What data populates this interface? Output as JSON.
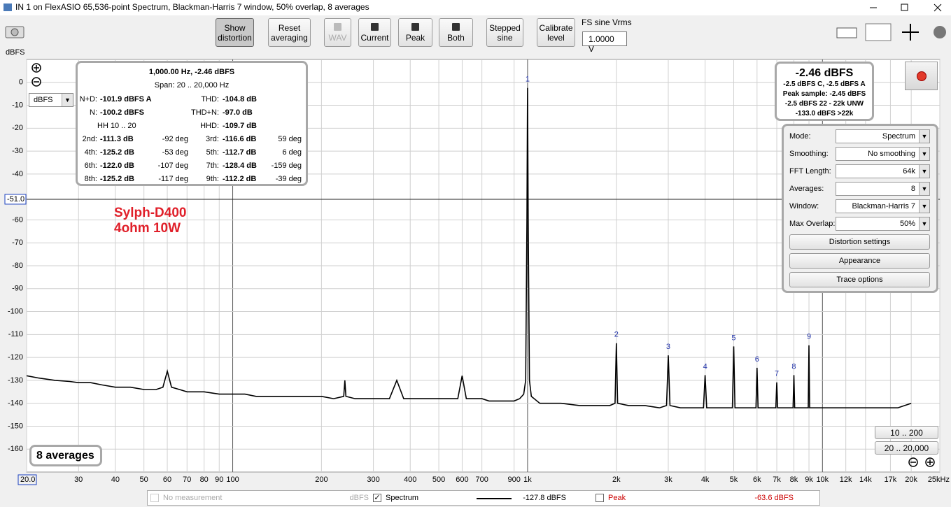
{
  "window": {
    "title": "IN 1 on FlexASIO 65,536-point Spectrum, Blackman-Harris 7 window, 50% overlap, 8 averages"
  },
  "toolbar": {
    "buttons": [
      "Show distortion",
      "Reset averaging",
      "WAV",
      "Current",
      "Peak",
      "Both",
      "Stepped sine",
      "Calibrate level"
    ],
    "fs_label": "FS sine Vrms",
    "fs_value": "1.0000 V"
  },
  "unit_label": "dBFS",
  "unit_selector": "dBFS",
  "chart_data": {
    "type": "line",
    "xscale": "log",
    "grid": true,
    "xlim": [
      20,
      25000
    ],
    "ylim": [
      -170,
      10
    ],
    "xticks": [
      {
        "value": 20,
        "label": "20.0"
      },
      30,
      40,
      50,
      60,
      70,
      80,
      90,
      100,
      200,
      300,
      400,
      500,
      600,
      700,
      900,
      {
        "value": 1000,
        "label": "1k"
      },
      {
        "value": 2000,
        "label": "2k"
      },
      {
        "value": 3000,
        "label": "3k"
      },
      {
        "value": 4000,
        "label": "4k"
      },
      {
        "value": 5000,
        "label": "5k"
      },
      {
        "value": 6000,
        "label": "6k"
      },
      {
        "value": 7000,
        "label": "7k"
      },
      {
        "value": 8000,
        "label": "8k"
      },
      {
        "value": 9000,
        "label": "9k"
      },
      {
        "value": 10000,
        "label": "10k"
      },
      {
        "value": 12000,
        "label": "12k"
      },
      {
        "value": 14000,
        "label": "14k"
      },
      {
        "value": 17000,
        "label": "17k"
      },
      {
        "value": 20000,
        "label": "20k"
      },
      {
        "value": 25000,
        "label": "25kHz"
      }
    ],
    "yticks": [
      0,
      -10,
      -20,
      -30,
      -40,
      -60,
      -70,
      -80,
      -90,
      -100,
      -110,
      -120,
      -130,
      -140,
      -150,
      -160
    ],
    "cursor": {
      "value": -51,
      "label": "-51.0"
    },
    "x": [
      20,
      22,
      25,
      28,
      30,
      33,
      36,
      40,
      45,
      50,
      55,
      58,
      60,
      62,
      66,
      70,
      80,
      90,
      100,
      110,
      120,
      140,
      160,
      180,
      200,
      220,
      238,
      240,
      242,
      260,
      300,
      320,
      340,
      360,
      380,
      400,
      440,
      480,
      500,
      540,
      580,
      600,
      620,
      660,
      700,
      740,
      780,
      820,
      860,
      900,
      940,
      970,
      985,
      995,
      1000,
      1005,
      1015,
      1030,
      1100,
      1300,
      1500,
      1700,
      1900,
      1980,
      2000,
      2020,
      2200,
      2500,
      2800,
      2960,
      3000,
      3040,
      3300,
      3600,
      3950,
      4000,
      4050,
      4500,
      4950,
      5000,
      5050,
      5500,
      5950,
      6000,
      6050,
      6500,
      6950,
      7000,
      7050,
      7500,
      7950,
      8000,
      8050,
      8500,
      8950,
      9000,
      9050,
      9500,
      10000,
      11000,
      12000,
      13000,
      14000,
      15000,
      16000,
      17000,
      18000,
      19000,
      20000
    ],
    "series": [
      {
        "name": "Spectrum",
        "color": "#000000",
        "values": [
          -128,
          -129,
          -130,
          -130.5,
          -131,
          -131,
          -132,
          -133,
          -133,
          -134,
          -134,
          -133,
          -126,
          -133,
          -134,
          -135,
          -135,
          -136,
          -136,
          -136,
          -137,
          -137,
          -137,
          -137,
          -137,
          -138,
          -137,
          -130,
          -137,
          -138,
          -138,
          -138,
          -138,
          -130,
          -138,
          -138,
          -138,
          -138,
          -138,
          -138,
          -138,
          -128,
          -138,
          -138,
          -138,
          -139,
          -139,
          -139,
          -139,
          -139,
          -138,
          -136,
          -130,
          -60,
          -2.46,
          -60,
          -130,
          -137,
          -140,
          -140,
          -141,
          -141,
          -141,
          -140,
          -113.8,
          -140,
          -141,
          -141,
          -142,
          -141,
          -119.1,
          -141,
          -142,
          -142,
          -142,
          -127.7,
          -142,
          -142,
          -142,
          -115.2,
          -142,
          -142,
          -142,
          -124.5,
          -142,
          -142,
          -142,
          -130.9,
          -142,
          -142,
          -142,
          -127.7,
          -142,
          -142,
          -142,
          -114.7,
          -142,
          -142,
          -142,
          -142,
          -142,
          -142,
          -142,
          -142,
          -142,
          -142,
          -142,
          -141,
          -140
        ]
      }
    ],
    "markers": [
      {
        "label": "1",
        "x": 1000,
        "y": -2.46
      },
      {
        "label": "2",
        "x": 2000,
        "y": -113.8
      },
      {
        "label": "3",
        "x": 3000,
        "y": -119.1
      },
      {
        "label": "4",
        "x": 4000,
        "y": -127.7
      },
      {
        "label": "5",
        "x": 5000,
        "y": -115.2
      },
      {
        "label": "6",
        "x": 6000,
        "y": -124.5
      },
      {
        "label": "7",
        "x": 7000,
        "y": -130.9
      },
      {
        "label": "8",
        "x": 8000,
        "y": -127.7
      },
      {
        "label": "9",
        "x": 9000,
        "y": -114.7
      }
    ],
    "annotations": [
      "Sylph-D400",
      "4ohm 10W"
    ],
    "averages_label": "8 averages",
    "range_buttons": [
      "10 .. 200",
      "20 .. 20,000"
    ]
  },
  "distortion": {
    "header": "1,000.00 Hz, -2.46 dBFS",
    "span": "Span: 20 .. 20,000 Hz",
    "rows": [
      {
        "l1": "N+D:",
        "v1": "-101.9 dBFS A",
        "l2": "THD:",
        "v2": "-104.8 dB"
      },
      {
        "l1": "N:",
        "v1": "-100.2 dBFS",
        "l2": "THD+N:",
        "v2": "-97.0 dB"
      },
      {
        "note": "HH 10 .. 20",
        "l2": "HHD:",
        "v2": "-109.7 dB"
      },
      {
        "l1": "2nd:",
        "v1": "-111.3 dB",
        "d1": "-92 deg",
        "l2": "3rd:",
        "v2": "-116.6 dB",
        "d2": "59 deg"
      },
      {
        "l1": "4th:",
        "v1": "-125.2 dB",
        "d1": "-53 deg",
        "l2": "5th:",
        "v2": "-112.7 dB",
        "d2": "6 deg"
      },
      {
        "l1": "6th:",
        "v1": "-122.0 dB",
        "d1": "-107 deg",
        "l2": "7th:",
        "v2": "-128.4 dB",
        "d2": "-159 deg"
      },
      {
        "l1": "8th:",
        "v1": "-125.2 dB",
        "d1": "-117 deg",
        "l2": "9th:",
        "v2": "-112.2 dB",
        "d2": "-39 deg"
      }
    ]
  },
  "readout": {
    "main": "-2.46 dBFS",
    "lines": [
      "-2.5 dBFS C, -2.5 dBFS A",
      "Peak sample: -2.45 dBFS",
      "-2.5 dBFS 22 - 22k UNW",
      "-133.0 dBFS >22k"
    ]
  },
  "settings": {
    "rows": [
      {
        "label": "Mode:",
        "value": "Spectrum"
      },
      {
        "label": "Smoothing:",
        "value": "No  smoothing"
      },
      {
        "label": "FFT Length:",
        "value": "64k"
      },
      {
        "label": "Averages:",
        "value": "8"
      },
      {
        "label": "Window:",
        "value": "Blackman-Harris 7"
      },
      {
        "label": "Max Overlap:",
        "value": "50%"
      }
    ],
    "buttons": [
      "Distortion settings",
      "Appearance",
      "Trace options"
    ]
  },
  "legend_bar": {
    "items": [
      {
        "name": "No measurement",
        "reading": "dBFS",
        "enabled": false
      },
      {
        "name": "Spectrum",
        "reading": "-127.8 dBFS",
        "checked": true,
        "color": "#000000"
      },
      {
        "name": "Peak",
        "reading": "-63.6 dBFS",
        "checked": false,
        "color": "#cc0000"
      }
    ]
  }
}
